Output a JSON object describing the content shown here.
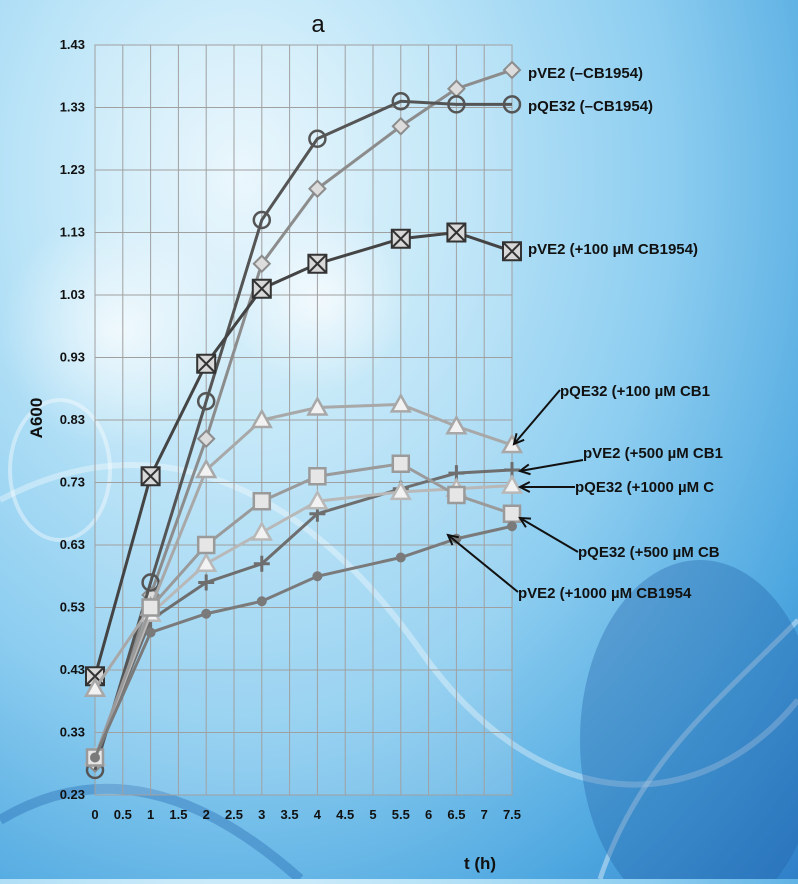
{
  "chart_data": {
    "type": "line",
    "title": "a",
    "xlabel": "t (h)",
    "ylabel": "A600",
    "xlim": [
      0,
      7.5
    ],
    "ylim": [
      0.23,
      1.43
    ],
    "grid": true,
    "x_ticks": [
      "0",
      "0.5",
      "1",
      "1.5",
      "2",
      "2.5",
      "3",
      "3.5",
      "4",
      "4.5",
      "5",
      "5.5",
      "6",
      "6.5",
      "7",
      "7.5"
    ],
    "y_ticks": [
      "0.23",
      "0.33",
      "0.43",
      "0.53",
      "0.63",
      "0.73",
      "0.83",
      "0.93",
      "1.03",
      "1.13",
      "1.23",
      "1.33",
      "1.43"
    ],
    "series": [
      {
        "name": "pVE2 (–CB1954)",
        "marker": "diamond",
        "color": "#8c8c8c",
        "x": [
          0,
          1,
          2,
          3,
          4,
          5.5,
          6.5,
          7.5
        ],
        "y": [
          0.28,
          0.55,
          0.8,
          1.08,
          1.2,
          1.3,
          1.36,
          1.39
        ]
      },
      {
        "name": "pQE32 (–CB1954)",
        "marker": "circle",
        "color": "#555555",
        "x": [
          0,
          1,
          2,
          3,
          4,
          5.5,
          6.5,
          7.5
        ],
        "y": [
          0.27,
          0.57,
          0.86,
          1.15,
          1.28,
          1.34,
          1.335,
          1.335
        ]
      },
      {
        "name": "pVE2 (+100 µM CB1954)",
        "marker": "square-x",
        "color": "#444444",
        "x": [
          0,
          1,
          2,
          3,
          4,
          5.5,
          6.5,
          7.5
        ],
        "y": [
          0.42,
          0.74,
          0.92,
          1.04,
          1.08,
          1.12,
          1.13,
          1.1
        ]
      },
      {
        "name": "pQE32 (+100 µM CB1",
        "marker": "triangle",
        "color": "#a8a8a8",
        "x": [
          0,
          1,
          2,
          3,
          4,
          5.5,
          6.5,
          7.5
        ],
        "y": [
          0.4,
          0.53,
          0.75,
          0.83,
          0.85,
          0.855,
          0.82,
          0.79
        ]
      },
      {
        "name": "pVE2 (+500 µM CB1",
        "marker": "plus",
        "color": "#6e6e6e",
        "x": [
          0,
          1,
          2,
          3,
          4,
          5.5,
          6.5,
          7.5
        ],
        "y": [
          0.29,
          0.51,
          0.57,
          0.6,
          0.68,
          0.72,
          0.745,
          0.75
        ]
      },
      {
        "name": "pQE32 (+1000 µM C",
        "marker": "triangle",
        "color": "#b8b8b8",
        "x": [
          0,
          1,
          2,
          3,
          4,
          5.5,
          6.5,
          7.5
        ],
        "y": [
          0.29,
          0.52,
          0.6,
          0.65,
          0.7,
          0.715,
          0.72,
          0.725
        ]
      },
      {
        "name": "pQE32 (+500 µM CB",
        "marker": "square",
        "color": "#9a9a9a",
        "x": [
          0,
          1,
          2,
          3,
          4,
          5.5,
          6.5,
          7.5
        ],
        "y": [
          0.29,
          0.53,
          0.63,
          0.7,
          0.74,
          0.76,
          0.71,
          0.68
        ]
      },
      {
        "name": "pVE2 (+1000 µM CB1954",
        "marker": "circle-small",
        "color": "#7a7a7a",
        "x": [
          0,
          1,
          2,
          3,
          4,
          5.5,
          6.5,
          7.5
        ],
        "y": [
          0.29,
          0.49,
          0.52,
          0.54,
          0.58,
          0.61,
          0.64,
          0.66
        ]
      }
    ]
  }
}
